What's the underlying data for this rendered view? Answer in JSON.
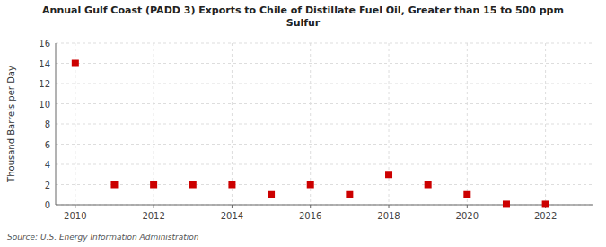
{
  "chart_data": {
    "type": "scatter",
    "title": "Annual Gulf Coast (PADD 3) Exports to Chile of Distillate Fuel Oil, Greater than 15 to 500 ppm\nSulfur",
    "ylabel": "Thousand Barrels per Day",
    "source": "Source: U.S. Energy Information Administration",
    "x": [
      2010,
      2011,
      2012,
      2013,
      2014,
      2015,
      2016,
      2017,
      2018,
      2019,
      2020,
      2021,
      2022
    ],
    "values": [
      14.0,
      2.0,
      2.0,
      2.0,
      2.0,
      1.0,
      2.0,
      1.0,
      3.0,
      2.0,
      1.0,
      0.05,
      0.05
    ],
    "color": "#cc0000",
    "marker": "square",
    "xlim": [
      2009.5,
      2023.2
    ],
    "ylim": [
      0,
      16
    ],
    "xticks": [
      2010,
      2012,
      2014,
      2016,
      2018,
      2020,
      2022
    ],
    "yticks": [
      0,
      2,
      4,
      6,
      8,
      10,
      12,
      14,
      16
    ],
    "grid": true
  }
}
